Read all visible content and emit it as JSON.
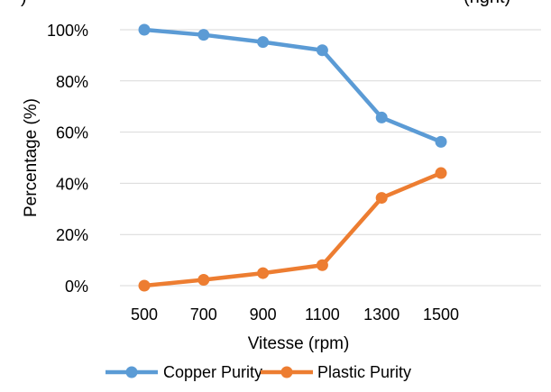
{
  "header_fragments": {
    "left": ")",
    "right": "(right)"
  },
  "chart_data": {
    "type": "line",
    "categories": [
      "500",
      "700",
      "900",
      "1100",
      "1300",
      "1500"
    ],
    "series": [
      {
        "name": "Copper Purity",
        "values": [
          100,
          98,
          95.2,
          92,
          65.7,
          56.2
        ],
        "color": "#5B9BD5"
      },
      {
        "name": "Plastic Purity",
        "values": [
          0,
          2.3,
          4.9,
          8,
          34.3,
          44
        ],
        "color": "#ED7D31"
      }
    ],
    "xlabel": "Vitesse (rpm)",
    "ylabel": "Percentage (%)",
    "ylim": [
      0,
      100
    ],
    "yticks": [
      "0%",
      "20%",
      "40%",
      "60%",
      "80%",
      "100%"
    ],
    "grid": true,
    "legend": "bottom"
  }
}
